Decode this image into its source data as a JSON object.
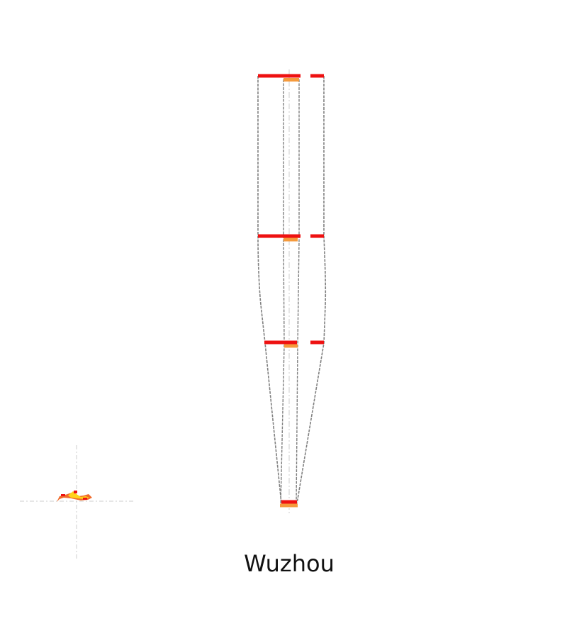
{
  "title": "Wuzhou",
  "colors": {
    "background": "#ffffff",
    "outline": "#808080",
    "axis": "#cccccc",
    "segment_main": "#ee1111",
    "segment_accent": "#f59a3c",
    "thumbnail_a": "#f06a2a",
    "thumbnail_b": "#ffd21a",
    "thumbnail_c": "#ee1111"
  }
}
